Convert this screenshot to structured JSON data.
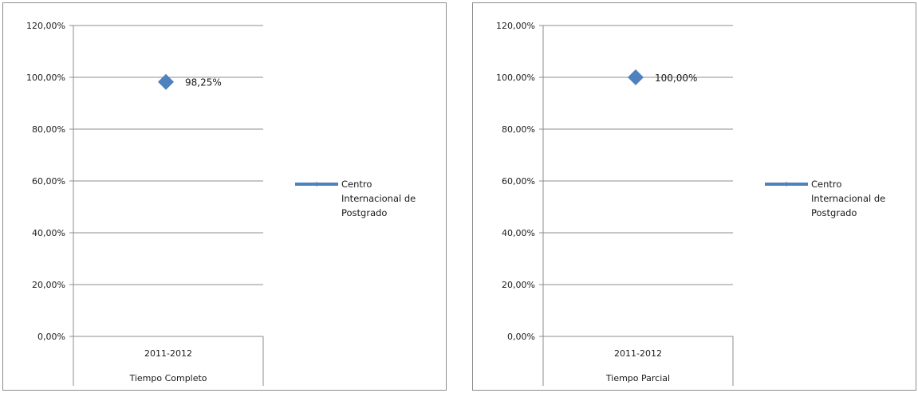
{
  "chart_data": [
    {
      "type": "line",
      "categories": [
        "2011-2012"
      ],
      "category_group": "Tiempo Completo",
      "series": [
        {
          "name": "Centro Internacional de Postgrado",
          "values": [
            0.9825
          ],
          "color": "#4f81bd"
        }
      ],
      "data_labels": [
        "98,25%"
      ],
      "yticks": [
        "0,00%",
        "20,00%",
        "40,00%",
        "60,00%",
        "80,00%",
        "100,00%",
        "120,00%"
      ],
      "ylim": [
        0,
        1.2
      ],
      "grid": true,
      "legend_position": "right",
      "legend_lines": [
        "Centro",
        "Internacional de",
        "Postgrado"
      ]
    },
    {
      "type": "line",
      "categories": [
        "2011-2012"
      ],
      "category_group": "Tiempo Parcial",
      "series": [
        {
          "name": "Centro Internacional de Postgrado",
          "values": [
            1.0
          ],
          "color": "#4f81bd"
        }
      ],
      "data_labels": [
        "100,00%"
      ],
      "yticks": [
        "0,00%",
        "20,00%",
        "40,00%",
        "60,00%",
        "80,00%",
        "100,00%",
        "120,00%"
      ],
      "ylim": [
        0,
        1.2
      ],
      "grid": true,
      "legend_position": "right",
      "legend_lines": [
        "Centro",
        "Internacional de",
        "Postgrado"
      ]
    }
  ]
}
